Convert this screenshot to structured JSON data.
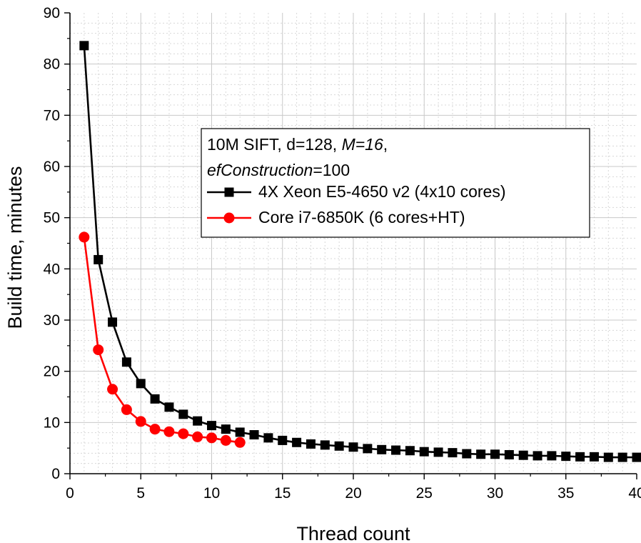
{
  "chart_data": {
    "type": "line",
    "xlabel": "Thread count",
    "ylabel": "Build time, minutes",
    "xlim": [
      0,
      40
    ],
    "ylim": [
      0,
      90
    ],
    "x_ticks": [
      0,
      5,
      10,
      15,
      20,
      25,
      30,
      35,
      40
    ],
    "y_ticks": [
      0,
      10,
      20,
      30,
      40,
      50,
      60,
      70,
      80,
      90
    ],
    "grid": true,
    "legend_placement": "center-right",
    "legend_title": {
      "line1_plain": "10M SIFT, d=128, ",
      "line1_italic": "M=16",
      "line1_end": ",",
      "line2_italic": "efConstruction",
      "line2_plain": "=100"
    },
    "series": [
      {
        "name": "4X Xeon E5-4650 v2 (4x10 cores)",
        "color": "#000000",
        "marker": "square",
        "x": [
          1,
          2,
          3,
          4,
          5,
          6,
          7,
          8,
          9,
          10,
          11,
          12,
          13,
          14,
          15,
          16,
          17,
          18,
          19,
          20,
          21,
          22,
          23,
          24,
          25,
          26,
          27,
          28,
          29,
          30,
          31,
          32,
          33,
          34,
          35,
          36,
          37,
          38,
          39,
          40
        ],
        "y": [
          83.6,
          41.8,
          29.6,
          21.8,
          17.6,
          14.6,
          13.0,
          11.6,
          10.3,
          9.4,
          8.7,
          8.1,
          7.6,
          7.0,
          6.5,
          6.1,
          5.8,
          5.6,
          5.4,
          5.2,
          4.9,
          4.7,
          4.6,
          4.5,
          4.3,
          4.2,
          4.1,
          3.9,
          3.8,
          3.8,
          3.7,
          3.6,
          3.5,
          3.5,
          3.4,
          3.3,
          3.3,
          3.2,
          3.2,
          3.2
        ]
      },
      {
        "name": "Core i7-6850K (6 cores+HT)",
        "color": "#ff0000",
        "marker": "circle",
        "x": [
          1,
          2,
          3,
          4,
          5,
          6,
          7,
          8,
          9,
          10,
          11,
          12
        ],
        "y": [
          46.2,
          24.2,
          16.5,
          12.5,
          10.2,
          8.7,
          8.2,
          7.8,
          7.2,
          7.0,
          6.5,
          6.1
        ]
      }
    ]
  }
}
